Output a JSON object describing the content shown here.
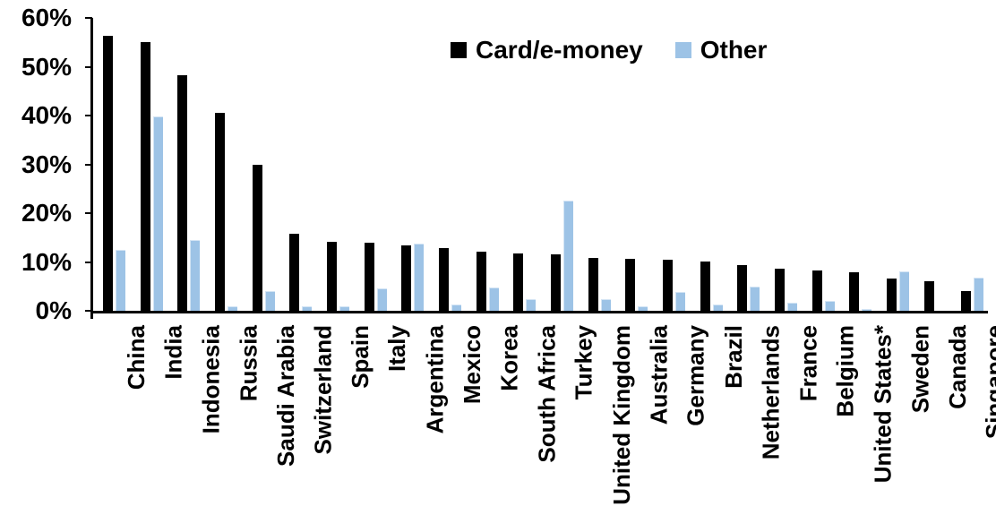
{
  "chart_data": {
    "type": "bar",
    "title": "",
    "xlabel": "",
    "ylabel": "",
    "categories": [
      "China",
      "India",
      "Indonesia",
      "Russia",
      "Saudi Arabia",
      "Switzerland",
      "Spain",
      "Italy",
      "Argentina",
      "Mexico",
      "Korea",
      "South Africa",
      "Turkey",
      "United Kingdom",
      "Australia",
      "Germany",
      "Brazil",
      "Netherlands",
      "France",
      "Belgium",
      "United States*",
      "Sweden",
      "Canada",
      "Singapore"
    ],
    "series": [
      {
        "name": "Card/e-money",
        "color": "#000000",
        "values": [
          56.3,
          55.0,
          48.3,
          40.5,
          29.9,
          15.7,
          14.2,
          14.0,
          13.4,
          12.9,
          12.2,
          11.8,
          11.6,
          10.9,
          10.7,
          10.5,
          10.0,
          9.3,
          8.6,
          8.2,
          7.8,
          6.6,
          6.1,
          4.0
        ]
      },
      {
        "name": "Other",
        "color": "#9DC3E6",
        "values": [
          12.4,
          39.8,
          14.5,
          1.0,
          4.0,
          0.9,
          1.0,
          4.6,
          13.8,
          1.3,
          4.7,
          2.3,
          22.5,
          2.4,
          1.0,
          3.9,
          1.2,
          4.9,
          1.6,
          2.0,
          0.3,
          8.1,
          0.0,
          6.8
        ]
      }
    ],
    "ylim": [
      0,
      60
    ],
    "yticks": [
      "0%",
      "10%",
      "20%",
      "30%",
      "40%",
      "50%",
      "60%"
    ],
    "grid": false,
    "legend_position": "top-center"
  }
}
